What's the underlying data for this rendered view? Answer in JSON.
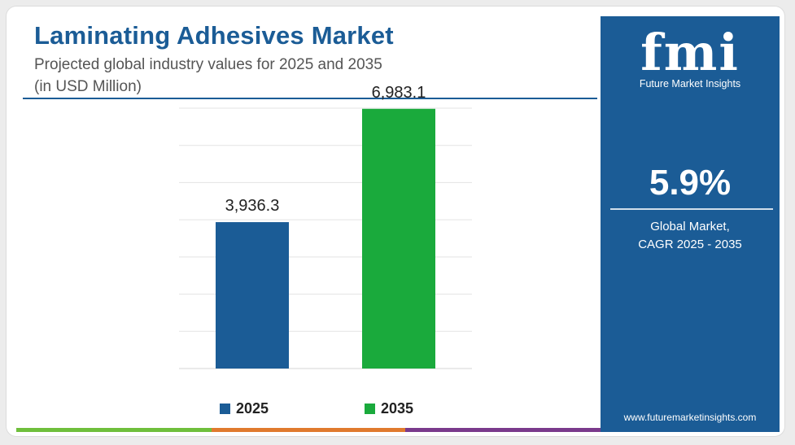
{
  "header": {
    "title": "Laminating Adhesives Market",
    "subtitle_line1": "Projected global industry values for 2025 and 2035",
    "subtitle_line2": "(in USD Million)"
  },
  "chart_data": {
    "type": "bar",
    "categories": [
      "2025",
      "2035"
    ],
    "values": [
      3936.3,
      6983.1
    ],
    "value_labels": [
      "3,936.3",
      "6,983.1"
    ],
    "colors": [
      "#1b5c96",
      "#1aaa3c"
    ],
    "ylim": [
      0,
      7000
    ],
    "grid": true,
    "legend_position": "bottom",
    "legend": [
      {
        "label": "2025",
        "color": "#1b5c96"
      },
      {
        "label": "2035",
        "color": "#1aaa3c"
      }
    ]
  },
  "side_panel": {
    "logo_text": "fmi",
    "logo_subtitle": "Future Market Insights",
    "cagr_value": "5.9%",
    "cagr_label_line1": "Global Market,",
    "cagr_label_line2": "CAGR 2025 - 2035",
    "website": "www.futuremarketinsights.com"
  },
  "colors": {
    "brand_blue": "#1b5c96",
    "green": "#1aaa3c",
    "bottom_bar": [
      "#6fbf3c",
      "#e07a2e",
      "#7a3a8c"
    ]
  }
}
